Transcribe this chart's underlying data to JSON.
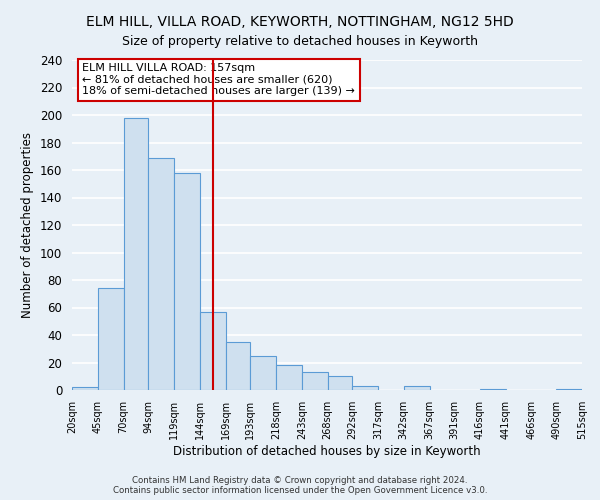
{
  "title": "ELM HILL, VILLA ROAD, KEYWORTH, NOTTINGHAM, NG12 5HD",
  "subtitle": "Size of property relative to detached houses in Keyworth",
  "xlabel": "Distribution of detached houses by size in Keyworth",
  "ylabel": "Number of detached properties",
  "bar_edges": [
    20,
    45,
    70,
    94,
    119,
    144,
    169,
    193,
    218,
    243,
    268,
    292,
    317,
    342,
    367,
    391,
    416,
    441,
    466,
    490,
    515
  ],
  "bar_heights": [
    2,
    74,
    198,
    169,
    158,
    57,
    35,
    25,
    18,
    13,
    10,
    3,
    0,
    3,
    0,
    0,
    1,
    0,
    0,
    1
  ],
  "bar_color": "#cfe0ef",
  "bar_edge_color": "#5b9bd5",
  "vline_x": 157,
  "vline_color": "#cc0000",
  "annotation_line1": "ELM HILL VILLA ROAD: 157sqm",
  "annotation_line2": "← 81% of detached houses are smaller (620)",
  "annotation_line3": "18% of semi-detached houses are larger (139) →",
  "ylim": [
    0,
    240
  ],
  "yticks": [
    0,
    20,
    40,
    60,
    80,
    100,
    120,
    140,
    160,
    180,
    200,
    220,
    240
  ],
  "tick_labels": [
    "20sqm",
    "45sqm",
    "70sqm",
    "94sqm",
    "119sqm",
    "144sqm",
    "169sqm",
    "193sqm",
    "218sqm",
    "243sqm",
    "268sqm",
    "292sqm",
    "317sqm",
    "342sqm",
    "367sqm",
    "391sqm",
    "416sqm",
    "441sqm",
    "466sqm",
    "490sqm",
    "515sqm"
  ],
  "footer_line1": "Contains HM Land Registry data © Crown copyright and database right 2024.",
  "footer_line2": "Contains public sector information licensed under the Open Government Licence v3.0.",
  "bg_color": "#e8f0f7",
  "plot_bg_color": "#e8f0f7",
  "grid_color": "#ffffff",
  "title_fontsize": 10,
  "subtitle_fontsize": 9
}
